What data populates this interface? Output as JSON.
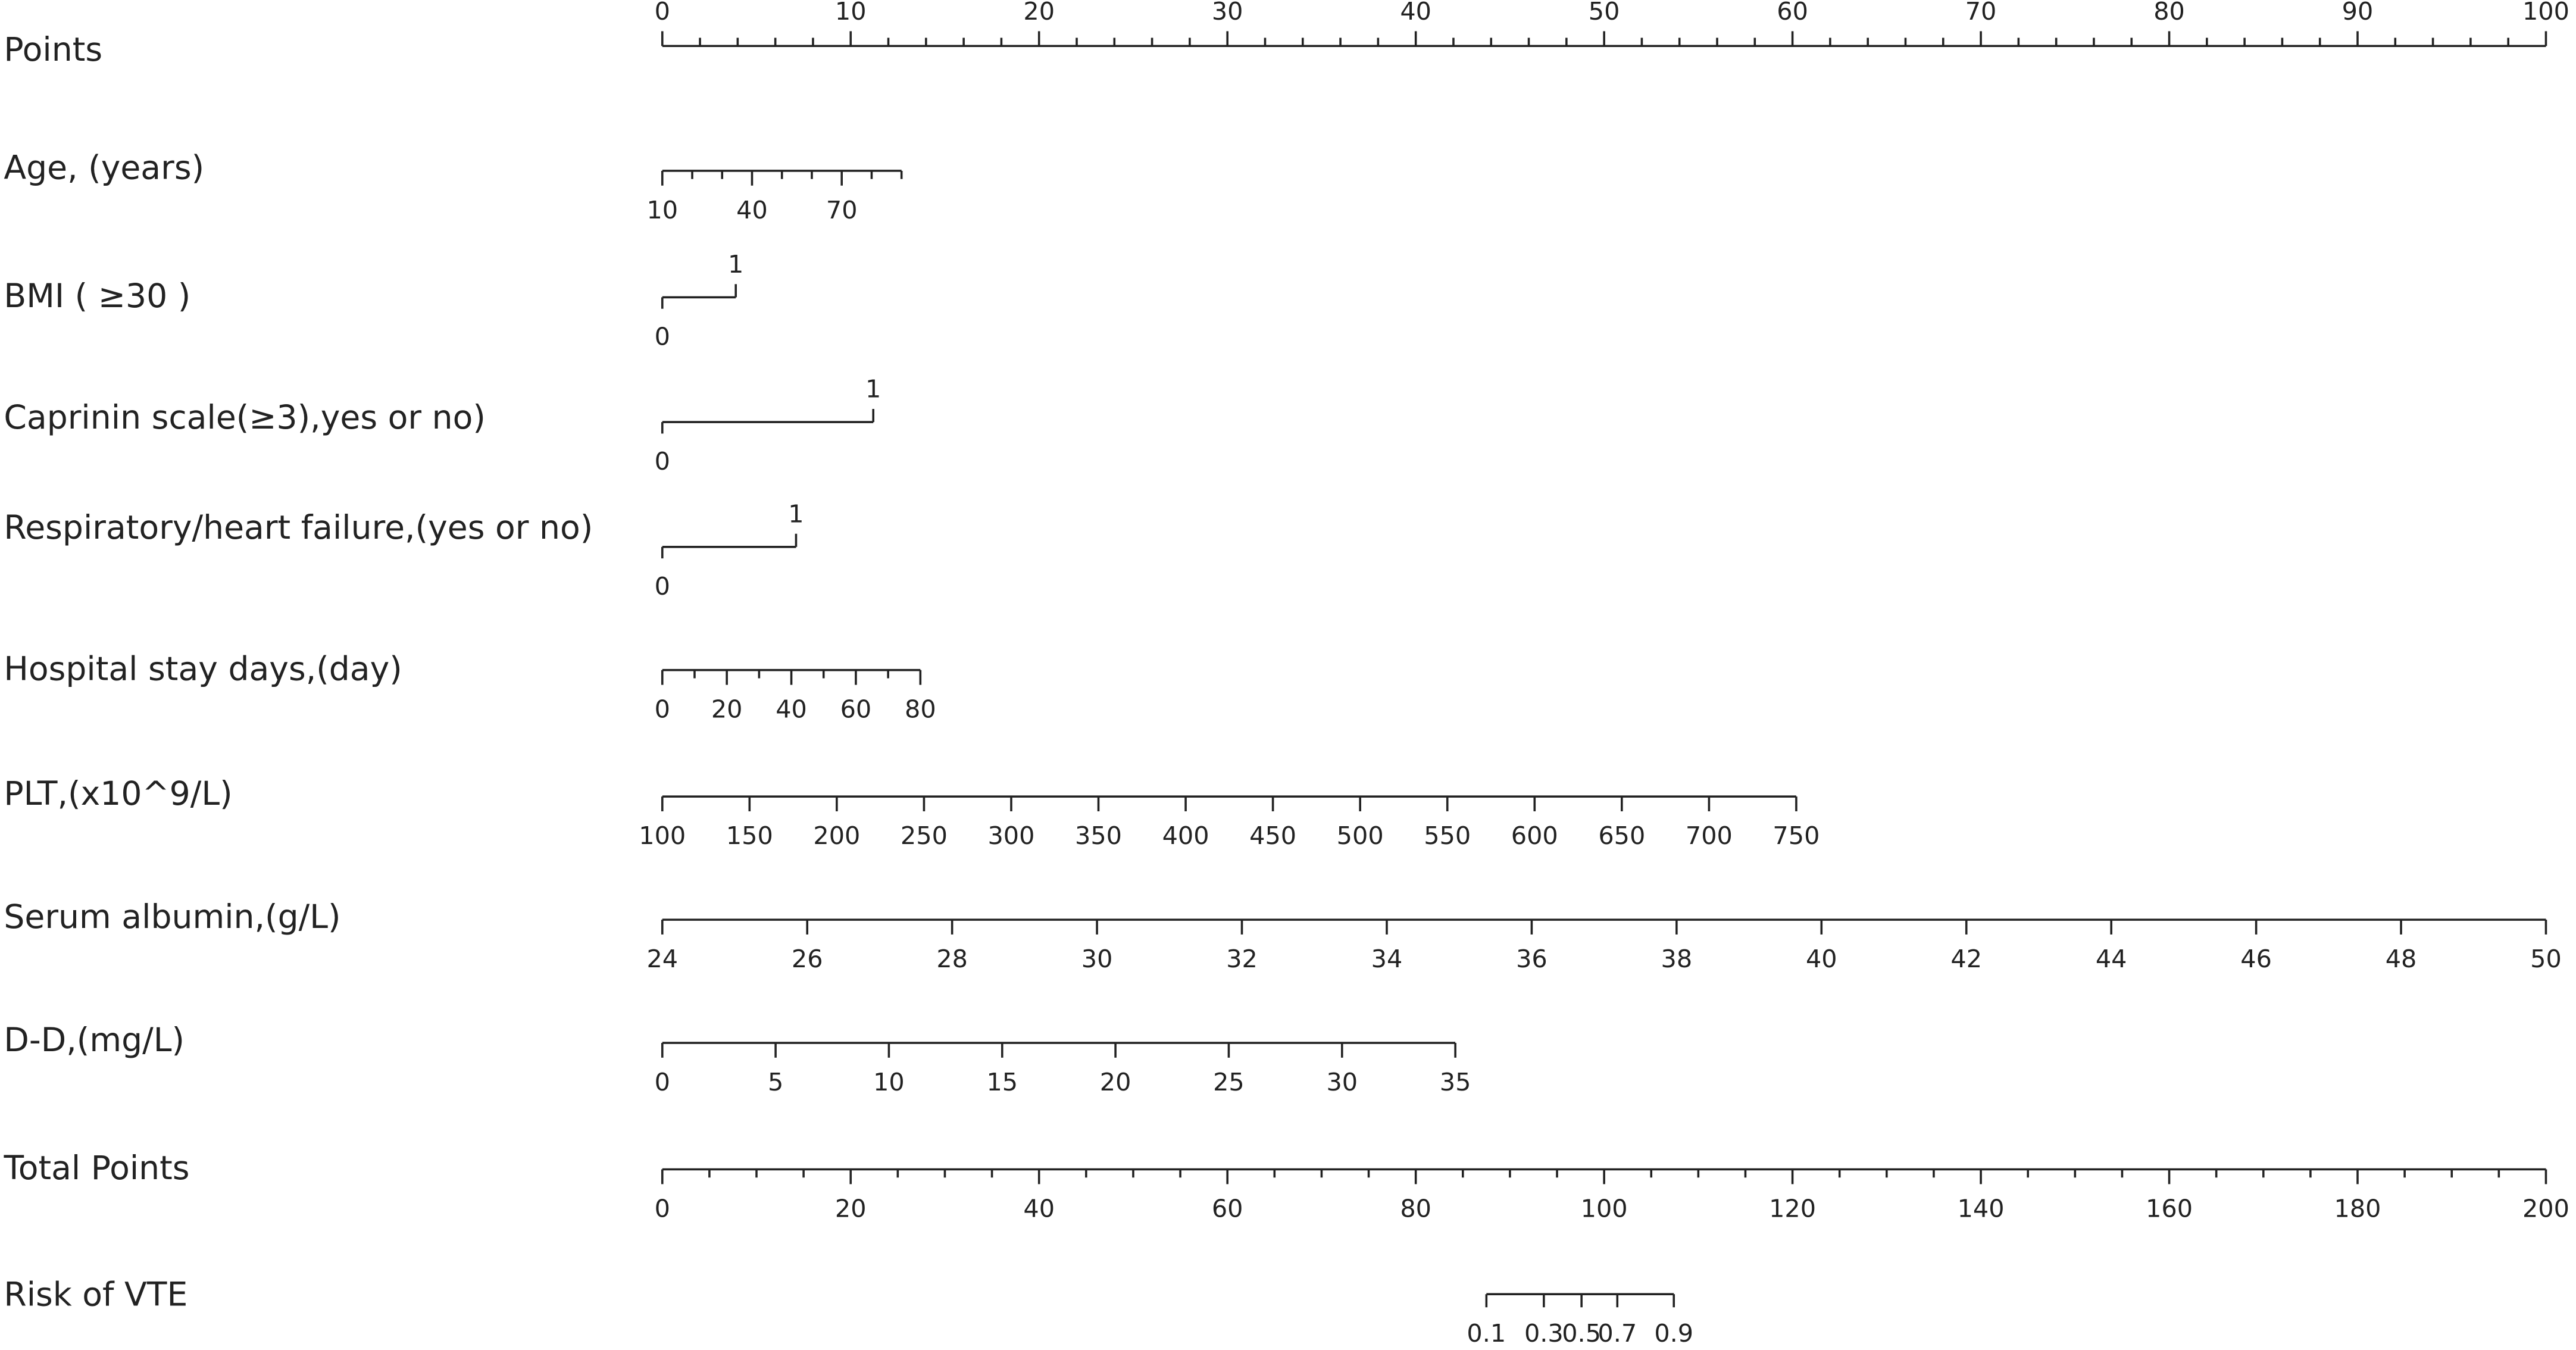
{
  "chart_data": {
    "type": "nomogram",
    "scales": [
      {
        "label": "Points",
        "xlim": [
          0,
          100
        ],
        "ticks": [
          0,
          10,
          20,
          30,
          40,
          50,
          60,
          70,
          80,
          90,
          100
        ],
        "minor_ticks": [
          2,
          4,
          6,
          8,
          12,
          14,
          16,
          18,
          22,
          24,
          26,
          28,
          32,
          34,
          36,
          38,
          42,
          44,
          46,
          48,
          52,
          54,
          56,
          58,
          62,
          64,
          66,
          68,
          72,
          74,
          76,
          78,
          82,
          84,
          86,
          88,
          92,
          94,
          96,
          98
        ]
      },
      {
        "label": "Age, (years)",
        "xlim": [
          10,
          90
        ],
        "points": [
          0,
          12.7
        ],
        "ticks": [
          10,
          40,
          70
        ],
        "minor_ticks": [
          20,
          30,
          50,
          60,
          80,
          90
        ]
      },
      {
        "label": "BMI ( ≥30 )",
        "xlim": [
          0,
          1
        ],
        "points": [
          0,
          3.9
        ],
        "ticks": [
          0,
          1
        ]
      },
      {
        "label": "Caprinin scale(≥3),yes or no)",
        "xlim": [
          0,
          1
        ],
        "points": [
          0,
          11.2
        ],
        "ticks": [
          0,
          1
        ]
      },
      {
        "label": "Respiratory/heart failure,(yes or no)",
        "xlim": [
          0,
          1
        ],
        "points": [
          0,
          7.1
        ],
        "ticks": [
          0,
          1
        ]
      },
      {
        "label": "Hospital stay days,(day)",
        "xlim": [
          0,
          80
        ],
        "points": [
          0,
          13.7
        ],
        "ticks": [
          0,
          20,
          40,
          60,
          80
        ],
        "minor_ticks": [
          10,
          30,
          50,
          70
        ]
      },
      {
        "label": "PLT,(x10^9/L)",
        "xlim": [
          100,
          750
        ],
        "points": [
          0,
          60.2
        ],
        "ticks": [
          100,
          150,
          200,
          250,
          300,
          350,
          400,
          450,
          500,
          550,
          600,
          650,
          700,
          750
        ]
      },
      {
        "label": "Serum albumin,(g/L)",
        "xlim": [
          24,
          50
        ],
        "points": [
          0,
          100
        ],
        "ticks": [
          24,
          26,
          28,
          30,
          32,
          34,
          36,
          38,
          40,
          42,
          44,
          46,
          48,
          50
        ]
      },
      {
        "label": "D-D,(mg/L)",
        "xlim": [
          0,
          35
        ],
        "points": [
          0,
          42.1
        ],
        "ticks": [
          0,
          5,
          10,
          15,
          20,
          25,
          30,
          35
        ]
      },
      {
        "label": "Total Points",
        "xlim": [
          0,
          200
        ],
        "ticks": [
          0,
          20,
          40,
          60,
          80,
          100,
          120,
          140,
          160,
          180,
          200
        ],
        "minor_ticks": [
          5,
          10,
          15,
          25,
          30,
          35,
          45,
          50,
          55,
          65,
          70,
          75,
          85,
          90,
          95,
          105,
          110,
          115,
          125,
          130,
          135,
          145,
          150,
          155,
          165,
          170,
          175,
          185,
          190,
          195
        ]
      },
      {
        "label": "Risk of VTE",
        "ticks": [
          0.1,
          0.3,
          0.5,
          0.7,
          0.9
        ],
        "total_points": [
          87.5,
          93.6,
          97.6,
          101.4,
          107.4
        ]
      }
    ]
  }
}
